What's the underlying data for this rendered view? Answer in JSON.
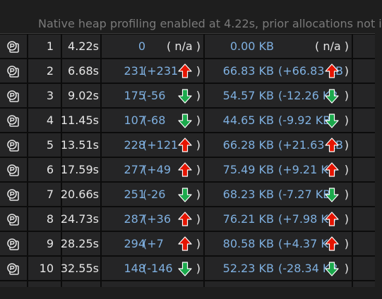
{
  "notice": "Native heap profiling enabled at 4.22s, prior allocations not i",
  "rows": [
    {
      "id": "1",
      "time": "4.22s",
      "count": "0",
      "count_diff": "",
      "count_na": "( n/a )",
      "size": "0.00 KB",
      "size_diff": "",
      "size_na": "( n/a )",
      "trend": "none"
    },
    {
      "id": "2",
      "time": "6.68s",
      "count": "231",
      "count_diff": "(+231",
      "size": "66.83 KB",
      "size_diff": "(+66.83 KB",
      "trend": "up"
    },
    {
      "id": "3",
      "time": "9.02s",
      "count": "175",
      "count_diff": "(-56",
      "size": "54.57 KB",
      "size_diff": "(-12.26 KB",
      "trend": "down"
    },
    {
      "id": "4",
      "time": "11.45s",
      "count": "107",
      "count_diff": "(-68",
      "size": "44.65 KB",
      "size_diff": "(-9.92 KB",
      "trend": "down"
    },
    {
      "id": "5",
      "time": "13.51s",
      "count": "228",
      "count_diff": "(+121",
      "size": "66.28 KB",
      "size_diff": "(+21.63 KB",
      "trend": "up"
    },
    {
      "id": "6",
      "time": "17.59s",
      "count": "277",
      "count_diff": "(+49",
      "size": "75.49 KB",
      "size_diff": "(+9.21 KB",
      "trend": "up"
    },
    {
      "id": "7",
      "time": "20.66s",
      "count": "251",
      "count_diff": "(-26",
      "size": "68.23 KB",
      "size_diff": "(-7.27 KB",
      "trend": "down"
    },
    {
      "id": "8",
      "time": "24.73s",
      "count": "287",
      "count_diff": "(+36",
      "size": "76.21 KB",
      "size_diff": "(+7.98 KB",
      "trend": "up"
    },
    {
      "id": "9",
      "time": "28.25s",
      "count": "294",
      "count_diff": "(+7",
      "size": "80.58 KB",
      "size_diff": "(+4.37 KB",
      "trend": "up"
    },
    {
      "id": "10",
      "time": "32.55s",
      "count": "148",
      "count_diff": "(-146",
      "size": "52.23 KB",
      "size_diff": "(-28.34 KB",
      "trend": "down"
    }
  ],
  "close_paren": ")",
  "icons": {
    "snapshot": "snapshot-icon",
    "up": "arrow-up-icon",
    "down": "arrow-down-icon"
  },
  "colors": {
    "up": "#e51400",
    "down": "#1ba94c",
    "value": "#7fb0e0"
  }
}
